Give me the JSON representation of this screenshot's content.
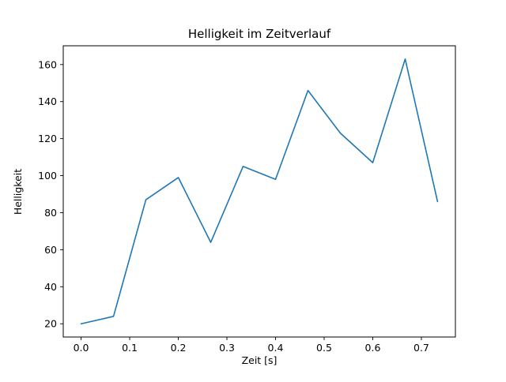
{
  "figure": {
    "title": "Helligkeit im Zeitverlauf",
    "xlabel": "Zeit [s]",
    "ylabel": "Helligkeit"
  },
  "chart_data": {
    "type": "line",
    "title": "Helligkeit im Zeitverlauf",
    "xlabel": "Zeit [s]",
    "ylabel": "Helligkeit",
    "x": [
      0.0,
      0.0667,
      0.1333,
      0.2,
      0.2667,
      0.3333,
      0.4,
      0.4667,
      0.5333,
      0.6,
      0.6667,
      0.7333
    ],
    "y": [
      20,
      24,
      87,
      99,
      64,
      105,
      98,
      146,
      123,
      107,
      163,
      86
    ],
    "xticks": [
      0.0,
      0.1,
      0.2,
      0.3,
      0.4,
      0.5,
      0.6,
      0.7
    ],
    "xtick_labels": [
      "0.0",
      "0.1",
      "0.2",
      "0.3",
      "0.4",
      "0.5",
      "0.6",
      "0.7"
    ],
    "yticks": [
      20,
      40,
      60,
      80,
      100,
      120,
      140,
      160
    ],
    "ytick_labels": [
      "20",
      "40",
      "60",
      "80",
      "100",
      "120",
      "140",
      "160"
    ],
    "xlim": [
      -0.0367,
      0.77
    ],
    "ylim": [
      12.85,
      170.15
    ],
    "line_color": "#1f77b4",
    "line_width": 1.6,
    "grid": false,
    "legend": null
  }
}
